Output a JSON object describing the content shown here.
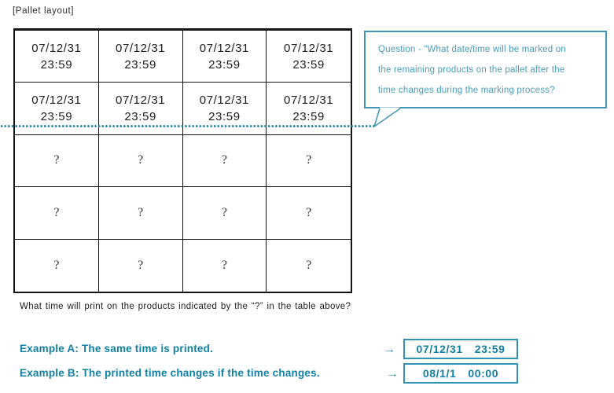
{
  "title": "[Pallet layout]",
  "table": {
    "columns": 4,
    "rows": [
      [
        {
          "date": "07/12/31",
          "time": "23:59"
        },
        {
          "date": "07/12/31",
          "time": "23:59"
        },
        {
          "date": "07/12/31",
          "time": "23:59"
        },
        {
          "date": "07/12/31",
          "time": "23:59"
        }
      ],
      [
        {
          "date": "07/12/31",
          "time": "23:59"
        },
        {
          "date": "07/12/31",
          "time": "23:59"
        },
        {
          "date": "07/12/31",
          "time": "23:59"
        },
        {
          "date": "07/12/31",
          "time": "23:59"
        }
      ],
      [
        {
          "text": "?"
        },
        {
          "text": "?"
        },
        {
          "text": "?"
        },
        {
          "text": "?"
        }
      ],
      [
        {
          "text": "?"
        },
        {
          "text": "?"
        },
        {
          "text": "?"
        },
        {
          "text": "?"
        }
      ],
      [
        {
          "text": "?"
        },
        {
          "text": "?"
        },
        {
          "text": "?"
        },
        {
          "text": "?"
        }
      ]
    ]
  },
  "bubble": {
    "lines": [
      "Question - “What date/time will be marked on",
      "the remaining products on the pallet after the",
      "time changes during the marking process?"
    ]
  },
  "footer_question": "What time will print on the products indicated by the “?” in the table above?",
  "examples": [
    {
      "label": "Example A: The same time is printed.",
      "arrow": "→",
      "date": "07/12/31",
      "time": "23:59"
    },
    {
      "label": "Example B: The printed time changes if the time changes.",
      "arrow": "→",
      "date": "08/1/1",
      "time": "00:00"
    }
  ],
  "colors": {
    "accent_teal": "#1180a6",
    "bubble_teal": "#4295b6",
    "dot_line_teal": "#1e84a3",
    "table_border": "#141414"
  }
}
